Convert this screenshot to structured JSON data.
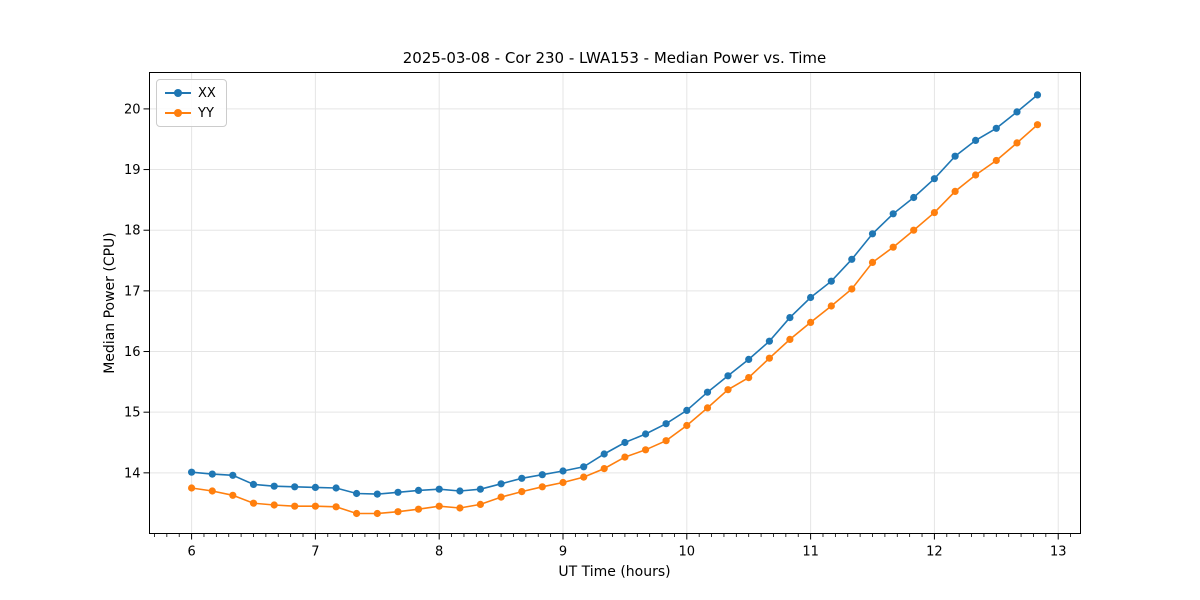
{
  "chart_data": {
    "type": "line",
    "title": "2025-03-08 - Cor 230 - LWA153 - Median Power vs. Time",
    "xlabel": "UT Time (hours)",
    "ylabel": "Median Power (CPU)",
    "xlim": [
      5.66,
      13.18
    ],
    "ylim": [
      13.0,
      20.6
    ],
    "xticks": [
      6,
      7,
      8,
      9,
      10,
      11,
      12,
      13
    ],
    "yticks": [
      14,
      15,
      16,
      17,
      18,
      19,
      20
    ],
    "minor_xtick_step": 0.1,
    "grid": true,
    "legend_position": "upper left",
    "legend": [
      {
        "label": "XX",
        "color": "#1f77b4"
      },
      {
        "label": "YY",
        "color": "#ff7f0e"
      }
    ],
    "x": [
      6.0,
      6.167,
      6.333,
      6.5,
      6.667,
      6.833,
      7.0,
      7.167,
      7.333,
      7.5,
      7.667,
      7.833,
      8.0,
      8.167,
      8.333,
      8.5,
      8.667,
      8.833,
      9.0,
      9.167,
      9.333,
      9.5,
      9.667,
      9.833,
      10.0,
      10.167,
      10.333,
      10.5,
      10.667,
      10.833,
      11.0,
      11.167,
      11.333,
      11.5,
      11.667,
      11.833,
      12.0,
      12.167,
      12.333,
      12.5,
      12.667,
      12.833
    ],
    "series": [
      {
        "name": "XX",
        "color": "#1f77b4",
        "values": [
          14.01,
          13.98,
          13.96,
          13.81,
          13.78,
          13.77,
          13.76,
          13.75,
          13.66,
          13.65,
          13.68,
          13.71,
          13.73,
          13.7,
          13.73,
          13.82,
          13.91,
          13.97,
          14.03,
          14.1,
          14.31,
          14.5,
          14.64,
          14.81,
          15.03,
          15.33,
          15.6,
          15.87,
          16.17,
          16.56,
          16.89,
          17.16,
          17.52,
          17.94,
          18.27,
          18.54,
          18.85,
          19.22,
          19.48,
          19.68,
          19.95,
          20.23
        ]
      },
      {
        "name": "YY",
        "color": "#ff7f0e",
        "values": [
          13.75,
          13.7,
          13.63,
          13.5,
          13.47,
          13.45,
          13.45,
          13.44,
          13.33,
          13.33,
          13.36,
          13.4,
          13.45,
          13.42,
          13.48,
          13.6,
          13.69,
          13.77,
          13.84,
          13.93,
          14.07,
          14.26,
          14.38,
          14.53,
          14.78,
          15.07,
          15.37,
          15.57,
          15.89,
          16.2,
          16.48,
          16.75,
          17.03,
          17.47,
          17.72,
          18.0,
          18.29,
          18.64,
          18.91,
          19.15,
          19.44,
          19.74
        ]
      }
    ]
  }
}
